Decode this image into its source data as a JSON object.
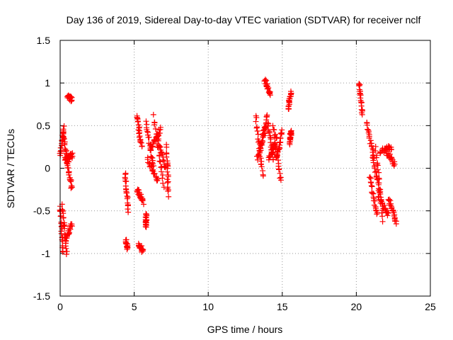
{
  "chart_data": {
    "type": "scatter",
    "title": "Day 136 of 2019, Sidereal Day-to-day VTEC variation (SDTVAR) for receiver nclf",
    "xlabel": "GPS time / hours",
    "ylabel": "SDTVAR / TECUs",
    "xlim": [
      0,
      25
    ],
    "ylim": [
      -1.5,
      1.5
    ],
    "xticks": [
      0,
      5,
      10,
      15,
      20,
      25
    ],
    "xtick_labels": [
      "0",
      "5",
      "10",
      "15",
      "20",
      "25"
    ],
    "yticks": [
      -1.5,
      -1,
      -0.5,
      0,
      0.5,
      1,
      1.5
    ],
    "ytick_labels": [
      "-1.5",
      "-1",
      "-0.5",
      "0",
      "0.5",
      "1",
      "1.5"
    ],
    "grid": true,
    "marker": "+",
    "color": "#ff0000",
    "segments": [
      {
        "x": [
          0.0,
          0.2
        ],
        "y": [
          -0.45,
          -1.0
        ]
      },
      {
        "x": [
          0.0,
          0.25
        ],
        "y": [
          0.15,
          0.48
        ]
      },
      {
        "x": [
          0.15,
          0.45
        ],
        "y": [
          -0.45,
          -0.98
        ]
      },
      {
        "x": [
          0.2,
          0.55
        ],
        "y": [
          0.4,
          0.05
        ]
      },
      {
        "x": [
          0.35,
          0.8
        ],
        "y": [
          -0.85,
          -0.65
        ]
      },
      {
        "x": [
          0.45,
          0.8
        ],
        "y": [
          0.1,
          -0.25
        ]
      },
      {
        "x": [
          0.5,
          0.8
        ],
        "y": [
          0.85,
          0.8
        ]
      },
      {
        "x": [
          0.3,
          0.85
        ],
        "y": [
          0.12,
          0.15
        ]
      },
      {
        "x": [
          4.4,
          4.6
        ],
        "y": [
          -0.05,
          -0.5
        ]
      },
      {
        "x": [
          4.45,
          4.55
        ],
        "y": [
          -0.85,
          -0.95
        ]
      },
      {
        "x": [
          5.2,
          5.5
        ],
        "y": [
          0.62,
          0.25
        ]
      },
      {
        "x": [
          5.2,
          5.6
        ],
        "y": [
          -0.25,
          -0.4
        ]
      },
      {
        "x": [
          5.3,
          5.6
        ],
        "y": [
          -0.88,
          -0.98
        ]
      },
      {
        "x": [
          5.8,
          5.8
        ],
        "y": [
          -0.55,
          -0.68
        ]
      },
      {
        "x": [
          5.8,
          6.3
        ],
        "y": [
          0.55,
          0.0
        ]
      },
      {
        "x": [
          5.9,
          6.6
        ],
        "y": [
          0.1,
          -0.15
        ]
      },
      {
        "x": [
          6.1,
          6.8
        ],
        "y": [
          0.25,
          0.45
        ]
      },
      {
        "x": [
          6.3,
          7.0
        ],
        "y": [
          0.6,
          -0.2
        ]
      },
      {
        "x": [
          6.5,
          7.1
        ],
        "y": [
          0.4,
          0.0
        ]
      },
      {
        "x": [
          7.2,
          7.3
        ],
        "y": [
          0.25,
          -0.32
        ]
      },
      {
        "x": [
          13.2,
          13.7
        ],
        "y": [
          0.6,
          -0.1
        ]
      },
      {
        "x": [
          13.3,
          13.9
        ],
        "y": [
          0.1,
          0.5
        ]
      },
      {
        "x": [
          13.5,
          14.0
        ],
        "y": [
          0.2,
          0.65
        ]
      },
      {
        "x": [
          13.8,
          14.2
        ],
        "y": [
          1.05,
          0.85
        ]
      },
      {
        "x": [
          14.0,
          14.4
        ],
        "y": [
          0.55,
          0.1
        ]
      },
      {
        "x": [
          14.1,
          14.6
        ],
        "y": [
          0.1,
          0.35
        ]
      },
      {
        "x": [
          14.4,
          14.9
        ],
        "y": [
          0.5,
          -0.15
        ]
      },
      {
        "x": [
          14.6,
          15.0
        ],
        "y": [
          0.1,
          0.45
        ]
      },
      {
        "x": [
          15.4,
          15.6
        ],
        "y": [
          0.7,
          0.9
        ]
      },
      {
        "x": [
          15.5,
          15.6
        ],
        "y": [
          0.3,
          0.45
        ]
      },
      {
        "x": [
          20.2,
          20.4
        ],
        "y": [
          1.0,
          0.65
        ]
      },
      {
        "x": [
          20.7,
          21.2
        ],
        "y": [
          0.55,
          0.1
        ]
      },
      {
        "x": [
          20.9,
          21.4
        ],
        "y": [
          -0.1,
          -0.55
        ]
      },
      {
        "x": [
          21.1,
          21.6
        ],
        "y": [
          0.15,
          -0.3
        ]
      },
      {
        "x": [
          21.3,
          21.8
        ],
        "y": [
          0.25,
          -0.6
        ]
      },
      {
        "x": [
          21.5,
          22.2
        ],
        "y": [
          -0.35,
          -0.55
        ]
      },
      {
        "x": [
          21.6,
          22.4
        ],
        "y": [
          0.2,
          0.25
        ]
      },
      {
        "x": [
          22.0,
          22.6
        ],
        "y": [
          0.2,
          0.05
        ]
      },
      {
        "x": [
          22.2,
          22.7
        ],
        "y": [
          -0.35,
          -0.65
        ]
      }
    ]
  }
}
